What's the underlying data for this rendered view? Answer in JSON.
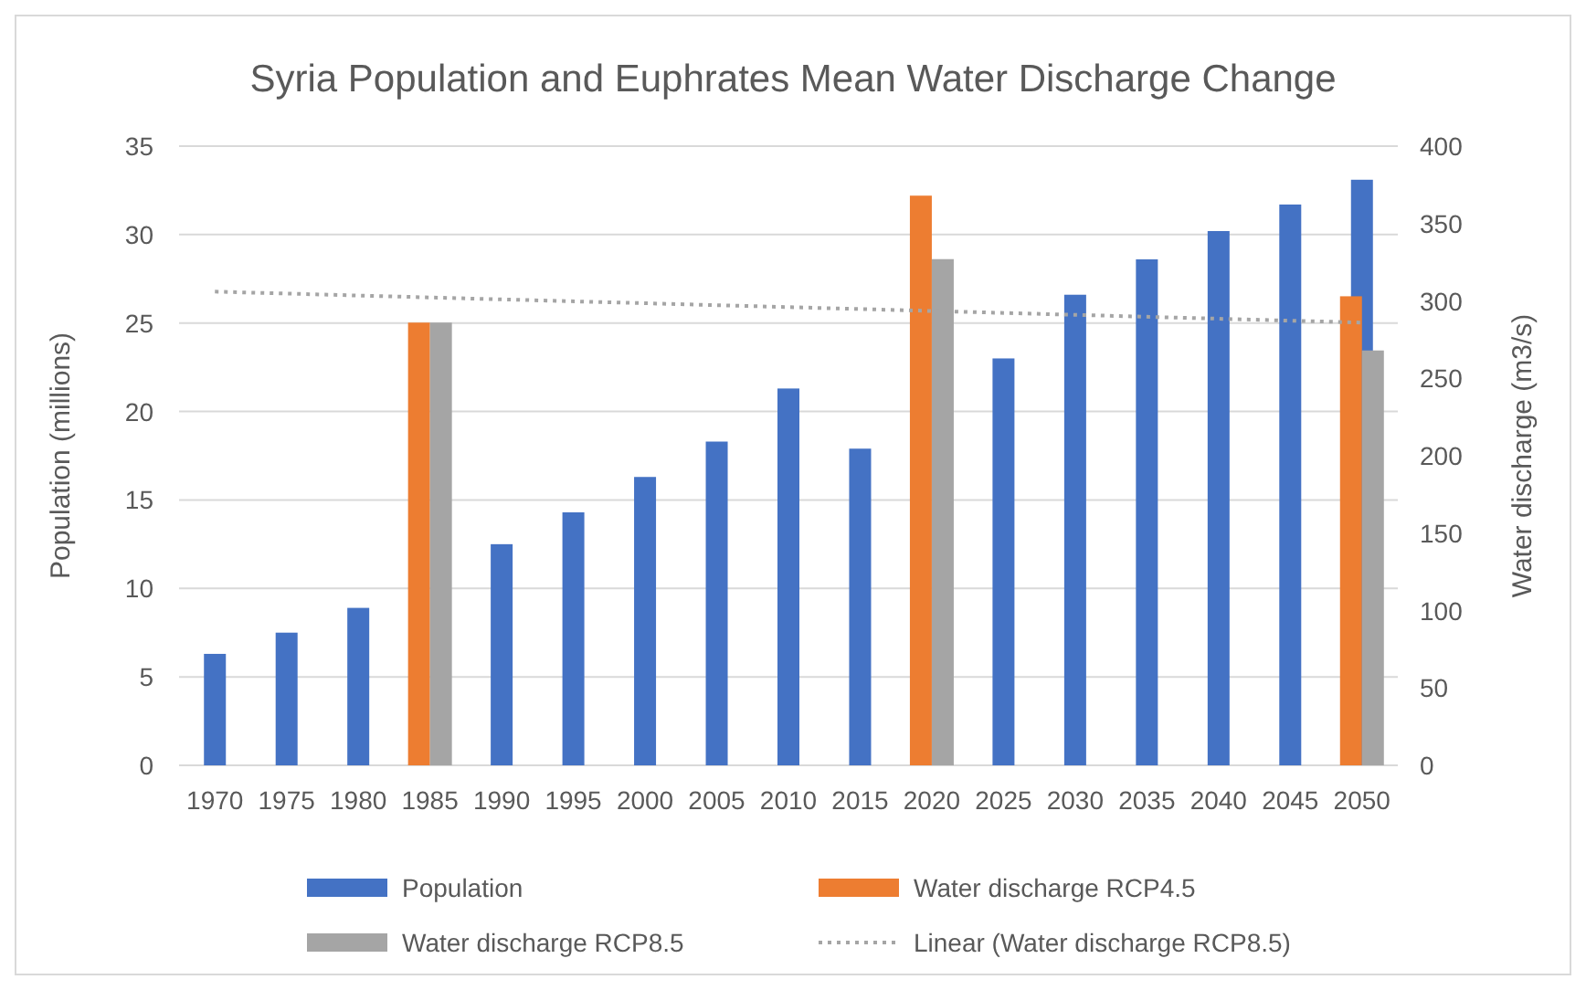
{
  "chart_data": {
    "type": "bar",
    "title": "Syria Population and Euphrates Mean Water Discharge Change",
    "ylabel": "Population (millions)",
    "y2label": "Water discharge (m3/s)",
    "categories": [
      "1970",
      "1975",
      "1980",
      "1985",
      "1990",
      "1995",
      "2000",
      "2005",
      "2010",
      "2015",
      "2020",
      "2025",
      "2030",
      "2035",
      "2040",
      "2045",
      "2050"
    ],
    "series": [
      {
        "name": "Population",
        "color": "#4472c4",
        "values": [
          6.3,
          7.5,
          8.9,
          null,
          12.5,
          14.3,
          16.3,
          18.3,
          21.3,
          17.9,
          null,
          23.0,
          26.6,
          28.6,
          30.2,
          31.7,
          33.1
        ]
      },
      {
        "name": "Water discharge RCP4.5",
        "color": "#ed7d31",
        "axis": "y2",
        "values": [
          null,
          null,
          null,
          286,
          null,
          null,
          null,
          null,
          null,
          null,
          368,
          null,
          null,
          null,
          null,
          null,
          303
        ]
      },
      {
        "name": "Water discharge RCP8.5",
        "color": "#a5a5a5",
        "axis": "y2",
        "values": [
          null,
          null,
          null,
          286,
          null,
          null,
          null,
          null,
          null,
          null,
          327,
          null,
          null,
          null,
          null,
          null,
          268
        ]
      },
      {
        "name": "Linear (Water discharge RCP8.5)",
        "type": "line",
        "color": "#a5a5a5",
        "axis": "y2",
        "line_style": "dotted",
        "values": [
          306,
          null,
          null,
          null,
          null,
          null,
          null,
          null,
          null,
          null,
          null,
          null,
          null,
          null,
          null,
          null,
          286
        ]
      }
    ],
    "ylim": [
      0,
      35
    ],
    "yticks": [
      0,
      5,
      10,
      15,
      20,
      25,
      30,
      35
    ],
    "y2lim": [
      0,
      400
    ],
    "y2ticks": [
      0,
      50,
      100,
      150,
      200,
      250,
      300,
      350,
      400
    ],
    "grid": "y",
    "legend": "bottom"
  }
}
